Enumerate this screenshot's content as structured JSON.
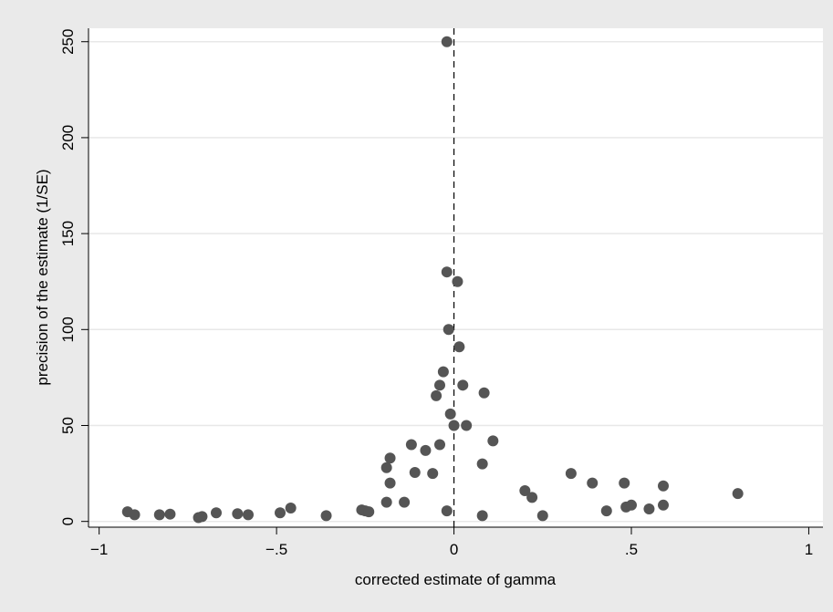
{
  "chart_data": {
    "type": "scatter",
    "title": "",
    "xlabel": "corrected estimate of gamma",
    "ylabel": "precision of the estimate (1/SE)",
    "xlim": [
      -1.03,
      1.04
    ],
    "ylim": [
      -3,
      257
    ],
    "xticks": [
      {
        "value": -1,
        "label": "−1"
      },
      {
        "value": -0.5,
        "label": "−.5"
      },
      {
        "value": 0,
        "label": "0"
      },
      {
        "value": 0.5,
        "label": ".5"
      },
      {
        "value": 1,
        "label": "1"
      }
    ],
    "yticks": [
      {
        "value": 0,
        "label": "0"
      },
      {
        "value": 50,
        "label": "50"
      },
      {
        "value": 100,
        "label": "100"
      },
      {
        "value": 150,
        "label": "150"
      },
      {
        "value": 200,
        "label": "200"
      },
      {
        "value": 250,
        "label": "250"
      }
    ],
    "grid": "horizontal",
    "reference_line": {
      "x": 0,
      "style": "dashed"
    },
    "colors": {
      "background": "#eaeaea",
      "plot": "#ffffff",
      "marker": "#555555",
      "grid": "#e8e8e8"
    },
    "points": [
      {
        "x": -0.92,
        "y": 5
      },
      {
        "x": -0.9,
        "y": 3.5
      },
      {
        "x": -0.83,
        "y": 3.5
      },
      {
        "x": -0.8,
        "y": 3.8
      },
      {
        "x": -0.72,
        "y": 2
      },
      {
        "x": -0.71,
        "y": 2.5
      },
      {
        "x": -0.67,
        "y": 4.5
      },
      {
        "x": -0.61,
        "y": 4
      },
      {
        "x": -0.58,
        "y": 3.5
      },
      {
        "x": -0.49,
        "y": 4.5
      },
      {
        "x": -0.46,
        "y": 7
      },
      {
        "x": -0.36,
        "y": 3
      },
      {
        "x": -0.26,
        "y": 6
      },
      {
        "x": -0.25,
        "y": 5.5
      },
      {
        "x": -0.24,
        "y": 5
      },
      {
        "x": -0.19,
        "y": 28
      },
      {
        "x": -0.19,
        "y": 10
      },
      {
        "x": -0.18,
        "y": 33
      },
      {
        "x": -0.18,
        "y": 20
      },
      {
        "x": -0.14,
        "y": 10
      },
      {
        "x": -0.12,
        "y": 40
      },
      {
        "x": -0.11,
        "y": 25.5
      },
      {
        "x": -0.08,
        "y": 37
      },
      {
        "x": -0.06,
        "y": 25
      },
      {
        "x": -0.05,
        "y": 65.5
      },
      {
        "x": -0.04,
        "y": 71
      },
      {
        "x": -0.04,
        "y": 40
      },
      {
        "x": -0.03,
        "y": 78
      },
      {
        "x": -0.02,
        "y": 130
      },
      {
        "x": -0.02,
        "y": 5.5
      },
      {
        "x": -0.02,
        "y": 250
      },
      {
        "x": -0.015,
        "y": 100
      },
      {
        "x": -0.01,
        "y": 56
      },
      {
        "x": 0.0,
        "y": 50
      },
      {
        "x": 0.01,
        "y": 125
      },
      {
        "x": 0.015,
        "y": 91
      },
      {
        "x": 0.025,
        "y": 71
      },
      {
        "x": 0.035,
        "y": 50
      },
      {
        "x": 0.08,
        "y": 30
      },
      {
        "x": 0.08,
        "y": 3
      },
      {
        "x": 0.085,
        "y": 67
      },
      {
        "x": 0.11,
        "y": 42
      },
      {
        "x": 0.2,
        "y": 16
      },
      {
        "x": 0.22,
        "y": 12.5
      },
      {
        "x": 0.25,
        "y": 3
      },
      {
        "x": 0.33,
        "y": 25
      },
      {
        "x": 0.39,
        "y": 20
      },
      {
        "x": 0.43,
        "y": 5.5
      },
      {
        "x": 0.48,
        "y": 20
      },
      {
        "x": 0.485,
        "y": 7.5
      },
      {
        "x": 0.5,
        "y": 8.5
      },
      {
        "x": 0.55,
        "y": 6.5
      },
      {
        "x": 0.59,
        "y": 18.5
      },
      {
        "x": 0.59,
        "y": 8.5
      },
      {
        "x": 0.8,
        "y": 14.5
      }
    ]
  }
}
